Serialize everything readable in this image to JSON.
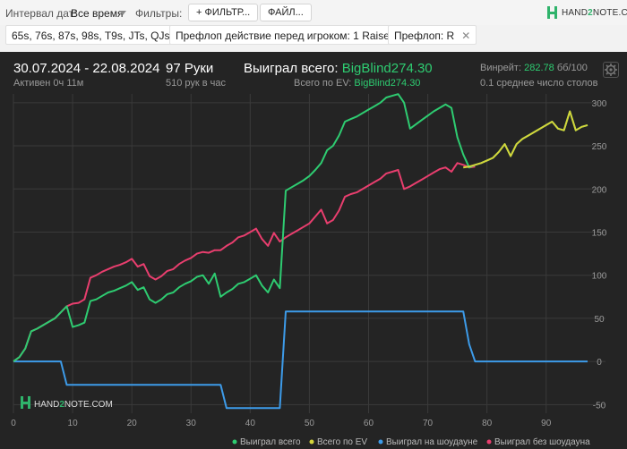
{
  "toolbar": {
    "date_interval_label": "Интервал дат:",
    "date_interval_value": "Все время",
    "filters_label": "Фильтры:",
    "filter_button": "+ ФИЛЬТР...",
    "file_button": "ФАЙЛ...",
    "logo_text_a": "HAND",
    "logo_text_b": "2",
    "logo_text_c": "NOTE.COM"
  },
  "chips": [
    {
      "label": "65s, 76s, 87s, 98s, T9s, JTs, QJs"
    },
    {
      "label": "Префлоп действие перед игроком: 1 Raise"
    },
    {
      "label": "Префлоп: R"
    }
  ],
  "summary": {
    "date_range": "30.07.2024 - 22.08.2024",
    "active": "Активен 0ч 11м",
    "hands": "97 Руки",
    "hands_per_hour": "510 рук в час",
    "won_total_label": "Выиграл всего:",
    "won_total_value": "BigBlind274.30",
    "ev_label": "Всего по EV:",
    "ev_value": "BigBlind274.30",
    "winrate_label": "Винрейт:",
    "winrate_value": "282.78",
    "winrate_unit": "бб/100",
    "tables": "0.1 среднее число столов"
  },
  "watermark": {
    "a": "HAND",
    "b": "2",
    "c": "NOTE.COM"
  },
  "colors": {
    "won_total": "#2ecc71",
    "ev_total": "#d4d43a",
    "showdown": "#3d9be9",
    "non_showdown": "#e83e6e"
  },
  "chart_data": {
    "type": "line",
    "xlim": [
      0,
      97
    ],
    "ylim": [
      -60,
      305
    ],
    "x_ticks": [
      "0",
      "10",
      "20",
      "30",
      "40",
      "50",
      "60",
      "70",
      "80",
      "90"
    ],
    "y_ticks": [
      "-50",
      "0",
      "50",
      "100",
      "150",
      "200",
      "250",
      "300"
    ],
    "grid": true,
    "legend": "bottom",
    "series": [
      {
        "name": "Выиграл всего",
        "color": "#2ecc71",
        "x": [
          0,
          1,
          2,
          3,
          4,
          5,
          6,
          7,
          8,
          9,
          10,
          11,
          12,
          13,
          14,
          15,
          16,
          17,
          18,
          19,
          20,
          21,
          22,
          23,
          24,
          25,
          26,
          27,
          28,
          29,
          30,
          31,
          32,
          33,
          34,
          35,
          36,
          37,
          38,
          39,
          40,
          41,
          42,
          43,
          44,
          45,
          46,
          47,
          48,
          49,
          50,
          51,
          52,
          53,
          54,
          55,
          56,
          57,
          58,
          59,
          60,
          61,
          62,
          63,
          64,
          65,
          66,
          67,
          68,
          69,
          70,
          71,
          72,
          73,
          74,
          75,
          76,
          77,
          78,
          79,
          80,
          81,
          82,
          83,
          84,
          85,
          86,
          87,
          88,
          89,
          90,
          91,
          92,
          93,
          94,
          95,
          96,
          97
        ],
        "y": [
          0,
          5,
          15,
          35,
          38,
          42,
          46,
          50,
          57,
          64,
          40,
          42,
          45,
          70,
          72,
          76,
          80,
          82,
          85,
          88,
          92,
          83,
          86,
          72,
          68,
          72,
          78,
          80,
          86,
          90,
          93,
          98,
          100,
          90,
          102,
          75,
          80,
          84,
          90,
          92,
          96,
          100,
          88,
          80,
          95,
          85,
          198,
          202,
          206,
          210,
          215,
          222,
          230,
          245,
          250,
          262,
          278,
          281,
          284,
          288,
          292,
          296,
          300,
          306,
          308,
          310,
          300,
          270,
          275,
          280,
          285,
          290,
          294,
          298,
          294,
          260,
          240,
          225,
          228,
          230,
          233,
          236,
          243,
          252,
          238,
          252,
          258,
          262,
          266,
          270,
          274,
          278,
          270,
          268,
          290,
          268,
          272,
          274
        ]
      },
      {
        "name": "Всего по EV",
        "color": "#d4d43a",
        "x": [
          76,
          77,
          78,
          79,
          80,
          81,
          82,
          83,
          84,
          85,
          86,
          87,
          88,
          89,
          90,
          91,
          92,
          93,
          94,
          95,
          96,
          97
        ],
        "y": [
          225,
          226,
          228,
          230,
          233,
          236,
          243,
          252,
          238,
          252,
          258,
          262,
          266,
          270,
          274,
          278,
          270,
          268,
          290,
          268,
          272,
          274
        ]
      },
      {
        "name": "Выиграл на шоудауне",
        "color": "#3d9be9",
        "x": [
          0,
          8,
          9,
          35,
          36,
          45,
          46,
          76,
          77,
          78,
          97
        ],
        "y": [
          0,
          0,
          -27,
          -27,
          -54,
          -54,
          58,
          58,
          20,
          0,
          0
        ]
      },
      {
        "name": "Выиграл без шоудауна",
        "color": "#e83e6e",
        "x": [
          0,
          1,
          2,
          3,
          4,
          5,
          6,
          7,
          8,
          9,
          10,
          11,
          12,
          13,
          14,
          15,
          16,
          17,
          18,
          19,
          20,
          21,
          22,
          23,
          24,
          25,
          26,
          27,
          28,
          29,
          30,
          31,
          32,
          33,
          34,
          35,
          36,
          37,
          38,
          39,
          40,
          41,
          42,
          43,
          44,
          45,
          46,
          47,
          48,
          49,
          50,
          51,
          52,
          53,
          54,
          55,
          56,
          57,
          58,
          59,
          60,
          61,
          62,
          63,
          64,
          65,
          66,
          67,
          68,
          69,
          70,
          71,
          72,
          73,
          74,
          75,
          76,
          77,
          78
        ],
        "y": [
          0,
          5,
          15,
          35,
          38,
          42,
          46,
          50,
          57,
          64,
          67,
          68,
          72,
          97,
          100,
          104,
          107,
          110,
          112,
          115,
          119,
          110,
          113,
          99,
          95,
          99,
          105,
          107,
          113,
          117,
          120,
          125,
          127,
          126,
          129,
          129,
          134,
          138,
          144,
          146,
          150,
          154,
          142,
          134,
          149,
          139,
          144,
          148,
          152,
          156,
          160,
          168,
          176,
          160,
          164,
          175,
          191,
          194,
          196,
          200,
          204,
          208,
          212,
          218,
          220,
          222,
          200,
          203,
          207,
          211,
          215,
          219,
          223,
          225,
          220,
          230,
          228,
          225,
          226
        ]
      }
    ]
  }
}
